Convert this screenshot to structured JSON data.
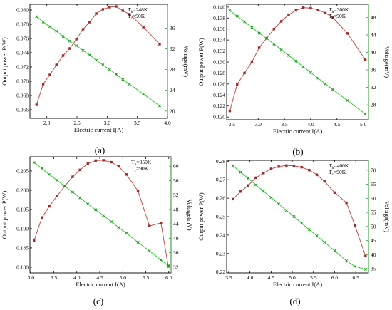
{
  "colors": {
    "power_series": "#c0504d",
    "power_marker": "#9b2d2d",
    "voltage_series": "#33cc33",
    "voltage_marker": "#1e9e1e",
    "right_axis": "#2e9e2e"
  },
  "chart_data": [
    {
      "type": "line",
      "panel_label": "(a)",
      "xlabel": "Electric current I(A)",
      "ylabel": "Output power P(W)",
      "y2label": "Voltage(mV)",
      "annotation": [
        "T",
        "h",
        "=248K",
        "T",
        "c",
        "=90K"
      ],
      "xlim": [
        1.72,
        4.0
      ],
      "ylim": [
        0.0648,
        0.0808
      ],
      "y2lim": [
        18.6,
        40.6
      ],
      "xticks": [
        2.0,
        2.5,
        3.0,
        3.5,
        4.0
      ],
      "xticklabels": [
        "2.0",
        "2.5",
        "3.0",
        "3.5",
        "4.0"
      ],
      "yticks": [
        0.066,
        0.068,
        0.07,
        0.072,
        0.074,
        0.076,
        0.078,
        0.08
      ],
      "yticklabels": [
        "0.066",
        "0.068",
        "0.070",
        "0.072",
        "0.074",
        "0.076",
        "0.078",
        "0.080"
      ],
      "y2ticks": [
        20,
        24,
        28,
        32,
        36
      ],
      "y2ticklabels": [
        "20",
        "24",
        "28",
        "32",
        "36"
      ],
      "grid": false,
      "series": [
        {
          "name": "P",
          "axis": "left",
          "x": [
            1.83,
            1.94,
            2.05,
            2.16,
            2.27,
            2.38,
            2.49,
            2.6,
            2.71,
            2.82,
            2.93,
            3.04,
            3.15,
            3.26,
            3.37,
            3.6,
            3.87
          ],
          "values": [
            0.0667,
            0.0696,
            0.0709,
            0.0723,
            0.0736,
            0.0746,
            0.0759,
            0.0773,
            0.0783,
            0.0795,
            0.0801,
            0.0804,
            0.0805,
            0.0799,
            0.0794,
            0.0776,
            0.0752
          ]
        },
        {
          "name": "V",
          "axis": "right",
          "x": [
            1.83,
            1.94,
            2.05,
            2.16,
            2.27,
            2.38,
            2.49,
            2.6,
            2.71,
            2.82,
            2.93,
            3.04,
            3.15,
            3.26,
            3.37,
            3.6,
            3.87
          ],
          "values": [
            38.2,
            37.2,
            36.3,
            35.4,
            34.4,
            33.5,
            32.6,
            31.7,
            30.8,
            29.8,
            28.9,
            28.0,
            27.1,
            26.1,
            25.2,
            23.3,
            21.0
          ]
        }
      ]
    },
    {
      "type": "line",
      "panel_label": "(b)",
      "xlabel": "Electric current I(A)",
      "ylabel": "Output power P(W)",
      "y2label": "Voltage(mV)",
      "annotation": [
        "T",
        "h",
        "=300K",
        "T",
        "c",
        "=90K"
      ],
      "xlim": [
        2.4,
        5.1
      ],
      "ylim": [
        0.1195,
        0.1405
      ],
      "y2lim": [
        24.6,
        51.0
      ],
      "xticks": [
        2.5,
        3.0,
        3.5,
        4.0,
        4.5,
        5.0
      ],
      "xticklabels": [
        "2.5",
        "3.0",
        "3.5",
        "4.0",
        "4.5",
        "5.0"
      ],
      "yticks": [
        0.12,
        0.122,
        0.124,
        0.126,
        0.128,
        0.13,
        0.132,
        0.134,
        0.136,
        0.138,
        0.14
      ],
      "yticklabels": [
        "0.120",
        "0.122",
        "0.124",
        "0.126",
        "0.128",
        "0.130",
        "0.132",
        "0.134",
        "0.136",
        "0.138",
        "0.140"
      ],
      "y2ticks": [
        28,
        32,
        36,
        40,
        44,
        48
      ],
      "y2ticklabels": [
        "28",
        "32",
        "36",
        "40",
        "44",
        "48"
      ],
      "grid": false,
      "series": [
        {
          "name": "P",
          "axis": "left",
          "x": [
            2.46,
            2.6,
            2.74,
            2.88,
            3.02,
            3.16,
            3.3,
            3.44,
            3.58,
            3.72,
            3.86,
            4.0,
            4.14,
            4.28,
            4.42,
            4.7,
            5.04
          ],
          "values": [
            0.1211,
            0.1259,
            0.128,
            0.13,
            0.1326,
            0.1343,
            0.136,
            0.1374,
            0.1386,
            0.1394,
            0.1399,
            0.1398,
            0.1395,
            0.1389,
            0.1381,
            0.1352,
            0.1304
          ]
        },
        {
          "name": "V",
          "axis": "right",
          "x": [
            2.46,
            2.6,
            2.74,
            2.88,
            3.02,
            3.16,
            3.3,
            3.44,
            3.58,
            3.72,
            3.86,
            4.0,
            4.14,
            4.28,
            4.42,
            4.7,
            5.04
          ],
          "values": [
            49.6,
            48.3,
            47.0,
            45.7,
            44.4,
            43.2,
            41.9,
            40.6,
            39.3,
            38.0,
            36.7,
            35.4,
            34.1,
            32.8,
            31.5,
            29.0,
            25.9
          ]
        }
      ]
    },
    {
      "type": "line",
      "panel_label": "(c)",
      "xlabel": "Electric current I(A)",
      "ylabel": "Output power P(W)",
      "y2label": "Voltage(mV)",
      "annotation": [
        "T",
        "h",
        "=350K",
        "T",
        "c",
        "=90K"
      ],
      "xlim": [
        2.98,
        6.05
      ],
      "ylim": [
        0.1785,
        0.2087
      ],
      "y2lim": [
        30.4,
        62.6
      ],
      "xticks": [
        3.0,
        3.5,
        4.0,
        4.5,
        5.0,
        5.5,
        6.0
      ],
      "xticklabels": [
        "3.0",
        "3.5",
        "4.0",
        "4.5",
        "5.0",
        "5.5",
        "6.0"
      ],
      "yticks": [
        0.18,
        0.185,
        0.19,
        0.195,
        0.2,
        0.205
      ],
      "yticklabels": [
        "0.180",
        "0.185",
        "0.190",
        "0.195",
        "0.200",
        "0.205"
      ],
      "y2ticks": [
        32,
        36,
        40,
        44,
        48,
        52,
        56,
        60
      ],
      "y2ticklabels": [
        "32",
        "36",
        "40",
        "44",
        "48",
        "52",
        "56",
        "60"
      ],
      "grid": false,
      "series": [
        {
          "name": "P",
          "axis": "left",
          "x": [
            3.07,
            3.24,
            3.4,
            3.57,
            3.74,
            3.91,
            4.07,
            4.24,
            4.41,
            4.58,
            4.75,
            4.91,
            5.08,
            5.33,
            5.58,
            5.83,
            5.99
          ],
          "values": [
            0.1869,
            0.1929,
            0.1958,
            0.1985,
            0.2011,
            0.2035,
            0.2053,
            0.2069,
            0.2077,
            0.2078,
            0.2073,
            0.2062,
            0.2041,
            0.1998,
            0.1907,
            0.1915,
            0.1802
          ]
        },
        {
          "name": "V",
          "axis": "right",
          "x": [
            3.07,
            3.24,
            3.4,
            3.57,
            3.74,
            3.91,
            4.07,
            4.24,
            4.41,
            4.58,
            4.75,
            4.91,
            5.08,
            5.33,
            5.58,
            5.83,
            5.99
          ],
          "values": [
            61.0,
            59.4,
            57.7,
            56.1,
            54.4,
            52.8,
            51.2,
            49.5,
            47.9,
            46.3,
            44.6,
            43.0,
            41.4,
            38.9,
            36.5,
            34.0,
            32.4
          ]
        }
      ]
    },
    {
      "type": "line",
      "panel_label": "(d)",
      "xlabel": "Electric current I(A)",
      "ylabel": "Output power P(W)",
      "y2label": "Voltage(mV)",
      "annotation": [
        "T",
        "h",
        "=400K",
        "T",
        "c",
        "=90K"
      ],
      "xlim": [
        3.45,
        6.8
      ],
      "ylim": [
        0.2195,
        0.2805
      ],
      "y2lim": [
        33.5,
        73.5
      ],
      "xticks": [
        3.5,
        4.0,
        4.5,
        5.0,
        5.5,
        6.0,
        6.5
      ],
      "xticklabels": [
        "3.5",
        "4.0",
        "4.5",
        "5.0",
        "5.5",
        "6.0",
        "6.5"
      ],
      "yticks": [
        0.22,
        0.23,
        0.24,
        0.25,
        0.26,
        0.27,
        0.28
      ],
      "yticklabels": [
        "0.22",
        "0.23",
        "0.24",
        "0.25",
        "0.26",
        "0.27",
        "0.28"
      ],
      "y2ticks": [
        35,
        40,
        45,
        50,
        55,
        60,
        65,
        70
      ],
      "y2ticklabels": [
        "35",
        "40",
        "45",
        "50",
        "55",
        "60",
        "65",
        "70"
      ],
      "grid": false,
      "series": [
        {
          "name": "P",
          "axis": "left",
          "x": [
            3.6,
            3.78,
            3.96,
            4.14,
            4.32,
            4.5,
            4.68,
            4.86,
            5.04,
            5.22,
            5.4,
            5.58,
            5.76,
            6.0,
            6.28,
            6.48,
            6.73
          ],
          "values": [
            0.2595,
            0.2636,
            0.2669,
            0.2711,
            0.2736,
            0.2759,
            0.2771,
            0.2777,
            0.2775,
            0.2768,
            0.2752,
            0.2727,
            0.2691,
            0.263,
            0.2575,
            0.2452,
            0.2286
          ]
        },
        {
          "name": "V",
          "axis": "right",
          "x": [
            3.6,
            3.78,
            3.96,
            4.14,
            4.32,
            4.5,
            4.68,
            4.86,
            5.04,
            5.22,
            5.4,
            5.58,
            5.76,
            6.0,
            6.28,
            6.48,
            6.73
          ],
          "values": [
            71.6,
            69.3,
            67.1,
            64.8,
            62.5,
            60.3,
            58.0,
            55.7,
            53.5,
            51.2,
            48.9,
            46.7,
            44.4,
            41.4,
            37.8,
            35.8,
            34.8
          ]
        }
      ]
    }
  ]
}
